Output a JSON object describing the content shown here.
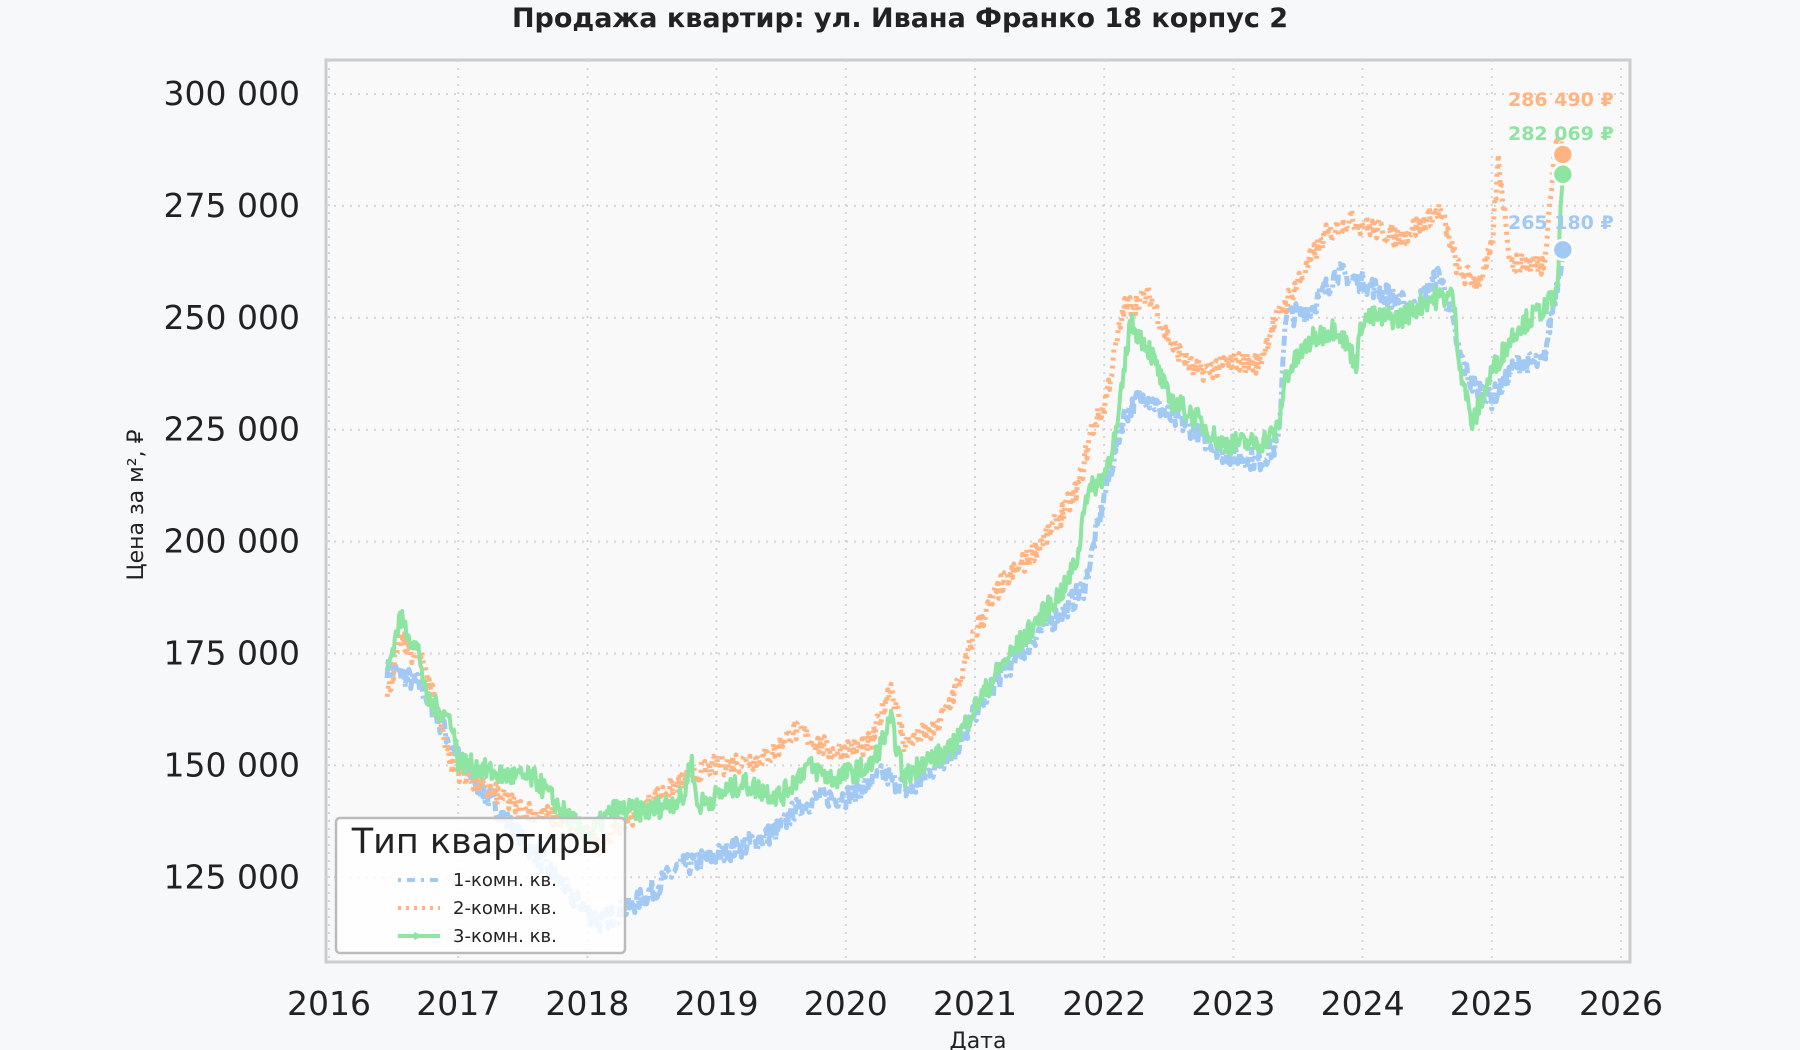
{
  "chart_data": {
    "type": "line",
    "title": "Продажа квартир: ул. Ивана Франко 18 корпус 2",
    "xlabel": "Дата",
    "ylabel": "Цена за м², ₽",
    "xlim": [
      2016,
      2026
    ],
    "ylim": [
      105000,
      308000
    ],
    "x_ticks": [
      "2016",
      "2017",
      "2018",
      "2019",
      "2020",
      "2021",
      "2022",
      "2023",
      "2024",
      "2025",
      "2026"
    ],
    "y_ticks": [
      "125 000",
      "150 000",
      "175 000",
      "200 000",
      "225 000",
      "250 000",
      "275 000",
      "300 000"
    ],
    "y_tick_values": [
      125000,
      150000,
      175000,
      200000,
      225000,
      250000,
      275000,
      300000
    ],
    "grid": true,
    "legend": {
      "title": "Тип квартиры",
      "placement": "bottom-left"
    },
    "series": [
      {
        "name": "1-комн. кв.",
        "color": "#a1c9f4",
        "style": "dashdot",
        "last_value": 265180,
        "last_label": "265 180 ₽",
        "points": [
          [
            2016.45,
            172000
          ],
          [
            2016.7,
            168000
          ],
          [
            2017.0,
            152000
          ],
          [
            2017.3,
            140000
          ],
          [
            2017.6,
            130000
          ],
          [
            2017.9,
            120000
          ],
          [
            2018.1,
            115000
          ],
          [
            2018.3,
            118000
          ],
          [
            2018.5,
            122000
          ],
          [
            2018.7,
            127000
          ],
          [
            2019.0,
            130000
          ],
          [
            2019.3,
            133000
          ],
          [
            2019.5,
            136000
          ],
          [
            2019.6,
            140000
          ],
          [
            2019.8,
            143000
          ],
          [
            2020.0,
            143000
          ],
          [
            2020.3,
            148000
          ],
          [
            2020.5,
            144000
          ],
          [
            2020.7,
            150000
          ],
          [
            2020.9,
            155000
          ],
          [
            2021.0,
            162000
          ],
          [
            2021.2,
            170000
          ],
          [
            2021.5,
            180000
          ],
          [
            2021.7,
            185000
          ],
          [
            2021.85,
            190000
          ],
          [
            2022.0,
            210000
          ],
          [
            2022.15,
            228000
          ],
          [
            2022.3,
            233000
          ],
          [
            2022.5,
            228000
          ],
          [
            2022.7,
            225000
          ],
          [
            2022.9,
            220000
          ],
          [
            2023.2,
            218000
          ],
          [
            2023.35,
            222000
          ],
          [
            2023.4,
            250000
          ],
          [
            2023.6,
            252000
          ],
          [
            2023.8,
            260000
          ],
          [
            2024.0,
            258000
          ],
          [
            2024.2,
            255000
          ],
          [
            2024.4,
            252000
          ],
          [
            2024.6,
            260000
          ],
          [
            2024.75,
            242000
          ],
          [
            2024.85,
            235000
          ],
          [
            2025.0,
            232000
          ],
          [
            2025.2,
            240000
          ],
          [
            2025.4,
            240000
          ],
          [
            2025.55,
            265180
          ]
        ]
      },
      {
        "name": "2-комн. кв.",
        "color": "#ffb482",
        "style": "dotted",
        "last_value": 286490,
        "last_label": "286 490 ₽",
        "points": [
          [
            2016.45,
            165000
          ],
          [
            2016.55,
            178000
          ],
          [
            2016.75,
            172000
          ],
          [
            2016.95,
            150000
          ],
          [
            2017.2,
            145000
          ],
          [
            2017.5,
            140000
          ],
          [
            2017.8,
            138000
          ],
          [
            2018.1,
            132000
          ],
          [
            2018.3,
            138000
          ],
          [
            2018.7,
            146000
          ],
          [
            2019.0,
            150000
          ],
          [
            2019.4,
            152000
          ],
          [
            2019.6,
            158000
          ],
          [
            2019.9,
            153000
          ],
          [
            2020.2,
            155000
          ],
          [
            2020.35,
            168000
          ],
          [
            2020.45,
            155000
          ],
          [
            2020.7,
            158000
          ],
          [
            2020.9,
            170000
          ],
          [
            2021.0,
            180000
          ],
          [
            2021.2,
            190000
          ],
          [
            2021.4,
            196000
          ],
          [
            2021.6,
            203000
          ],
          [
            2021.8,
            212000
          ],
          [
            2021.9,
            225000
          ],
          [
            2022.0,
            230000
          ],
          [
            2022.15,
            252000
          ],
          [
            2022.35,
            255000
          ],
          [
            2022.5,
            245000
          ],
          [
            2022.7,
            238000
          ],
          [
            2023.0,
            240000
          ],
          [
            2023.2,
            240000
          ],
          [
            2023.3,
            248000
          ],
          [
            2023.5,
            258000
          ],
          [
            2023.7,
            268000
          ],
          [
            2023.9,
            272000
          ],
          [
            2024.1,
            270000
          ],
          [
            2024.3,
            268000
          ],
          [
            2024.6,
            274000
          ],
          [
            2024.75,
            260000
          ],
          [
            2024.9,
            258000
          ],
          [
            2025.0,
            265000
          ],
          [
            2025.05,
            285000
          ],
          [
            2025.15,
            262000
          ],
          [
            2025.4,
            262000
          ],
          [
            2025.5,
            290000
          ],
          [
            2025.55,
            286490
          ]
        ]
      },
      {
        "name": "3-комн. кв.",
        "color": "#8de5a1",
        "style": "solid-marker",
        "last_value": 282069,
        "last_label": "282 069 ₽",
        "points": [
          [
            2016.45,
            171000
          ],
          [
            2016.55,
            183000
          ],
          [
            2016.7,
            175000
          ],
          [
            2016.75,
            165000
          ],
          [
            2016.95,
            160000
          ],
          [
            2017.0,
            151000
          ],
          [
            2017.3,
            148000
          ],
          [
            2017.6,
            147000
          ],
          [
            2017.8,
            140000
          ],
          [
            2018.0,
            134000
          ],
          [
            2018.1,
            137000
          ],
          [
            2018.2,
            140000
          ],
          [
            2018.5,
            140000
          ],
          [
            2018.75,
            143000
          ],
          [
            2018.8,
            152000
          ],
          [
            2018.85,
            141000
          ],
          [
            2019.2,
            146000
          ],
          [
            2019.5,
            143000
          ],
          [
            2019.7,
            150000
          ],
          [
            2019.9,
            147000
          ],
          [
            2020.2,
            150000
          ],
          [
            2020.35,
            160000
          ],
          [
            2020.45,
            147000
          ],
          [
            2020.6,
            151000
          ],
          [
            2020.8,
            153000
          ],
          [
            2021.0,
            163000
          ],
          [
            2021.2,
            172000
          ],
          [
            2021.5,
            183000
          ],
          [
            2021.7,
            190000
          ],
          [
            2021.8,
            197000
          ],
          [
            2021.85,
            210000
          ],
          [
            2022.0,
            215000
          ],
          [
            2022.1,
            225000
          ],
          [
            2022.2,
            249000
          ],
          [
            2022.35,
            243000
          ],
          [
            2022.5,
            232000
          ],
          [
            2022.7,
            228000
          ],
          [
            2022.9,
            222000
          ],
          [
            2023.2,
            222000
          ],
          [
            2023.35,
            225000
          ],
          [
            2023.4,
            237000
          ],
          [
            2023.6,
            245000
          ],
          [
            2023.8,
            248000
          ],
          [
            2023.95,
            240000
          ],
          [
            2024.0,
            250000
          ],
          [
            2024.3,
            250000
          ],
          [
            2024.5,
            254000
          ],
          [
            2024.7,
            255000
          ],
          [
            2024.75,
            240000
          ],
          [
            2024.85,
            226000
          ],
          [
            2025.0,
            238000
          ],
          [
            2025.2,
            248000
          ],
          [
            2025.4,
            252000
          ],
          [
            2025.5,
            255000
          ],
          [
            2025.55,
            282069
          ]
        ]
      }
    ]
  }
}
